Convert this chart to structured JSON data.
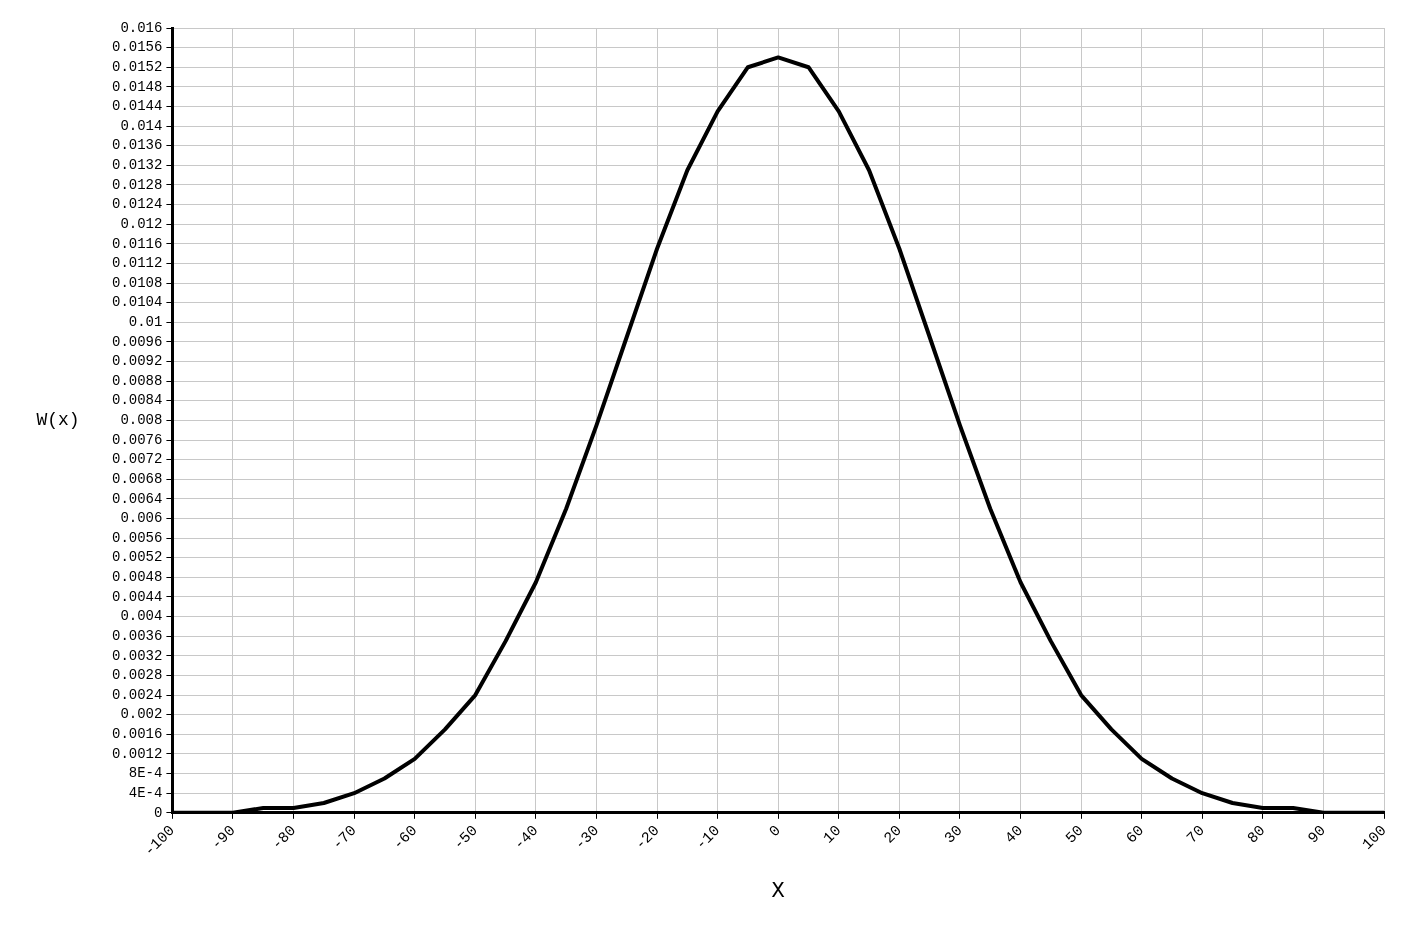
{
  "chart_data": {
    "type": "line",
    "xlabel": "X",
    "ylabel": "W(x)",
    "x": [
      -100,
      -95,
      -90,
      -85,
      -80,
      -75,
      -70,
      -65,
      -60,
      -55,
      -50,
      -45,
      -40,
      -35,
      -30,
      -25,
      -20,
      -15,
      -10,
      -5,
      0,
      5,
      10,
      15,
      20,
      25,
      30,
      35,
      40,
      45,
      50,
      55,
      60,
      65,
      70,
      75,
      80,
      85,
      90,
      95,
      100
    ],
    "series": [
      {
        "color": "#000000",
        "values": [
          0,
          0,
          0,
          0.0001,
          0.0001,
          0.0002,
          0.0004,
          0.0007,
          0.0011,
          0.0017,
          0.0024,
          0.0035,
          0.0047,
          0.0062,
          0.0079,
          0.0097,
          0.0115,
          0.0131,
          0.0143,
          0.0152,
          0.0154,
          0.0152,
          0.0143,
          0.0131,
          0.0115,
          0.0097,
          0.0079,
          0.0062,
          0.0047,
          0.0035,
          0.0024,
          0.0017,
          0.0011,
          0.0007,
          0.0004,
          0.0002,
          0.0001,
          0.0001,
          0,
          0,
          0
        ]
      }
    ],
    "xlim": [
      -100,
      100
    ],
    "xticks": [
      -100,
      -90,
      -80,
      -70,
      -60,
      -50,
      -40,
      -30,
      -20,
      -10,
      0,
      10,
      20,
      30,
      40,
      50,
      60,
      70,
      80,
      90,
      100
    ],
    "ylim": [
      0,
      0.016
    ],
    "yticks": [
      0,
      {
        "value": 0.0004,
        "label": "4E-4"
      },
      {
        "value": 0.0008,
        "label": "8E-4"
      },
      0.0012,
      0.0016,
      0.002,
      0.0024,
      0.0028,
      0.0032,
      0.0036,
      0.004,
      0.0044,
      0.0048,
      0.0052,
      0.0056,
      0.006,
      0.0064,
      0.0068,
      0.0072,
      0.0076,
      0.008,
      0.0084,
      0.0088,
      0.0092,
      0.0096,
      0.01,
      0.0104,
      0.0108,
      0.0112,
      0.0116,
      0.012,
      0.0124,
      0.0128,
      0.0132,
      0.0136,
      0.014,
      0.0144,
      0.0148,
      0.0152,
      0.0156,
      0.016
    ],
    "grid": true,
    "marker": "none",
    "line_style": "solid",
    "legend": false
  }
}
